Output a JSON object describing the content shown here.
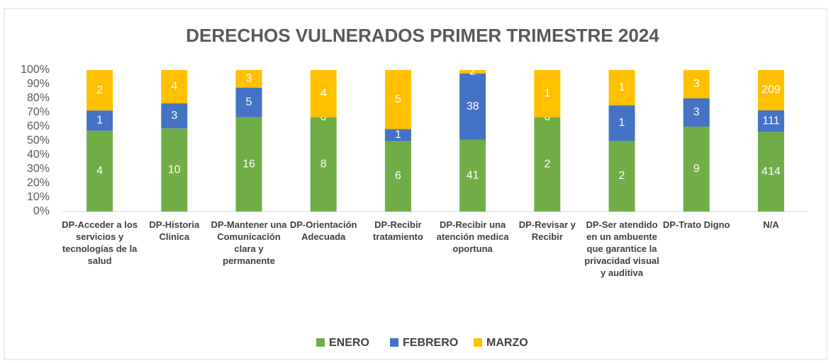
{
  "chart_data": {
    "type": "stacked_percent_bar",
    "title": "DERECHOS VULNERADOS PRIMER TRIMESTRE 2024",
    "categories": [
      "DP-Acceder a los servicios y tecnologías de la salud",
      "DP-Historia Clinica",
      "DP-Mantener una Comunicación clara y permanente",
      "DP-Orientación Adecuada",
      "DP-Recibir tratamiento",
      "DP-Recibir una atención medica oportuna",
      "DP-Revisar y Recibir",
      "DP-Ser atendido en un ambuente que garantice la privacidad visual y auditiva",
      "DP-Trato Digno",
      "N/A"
    ],
    "series": [
      {
        "name": "ENERO",
        "color": "#70ad47",
        "values": [
          4,
          10,
          16,
          8,
          6,
          41,
          2,
          2,
          9,
          414
        ]
      },
      {
        "name": "FEBRERO",
        "color": "#4472c4",
        "values": [
          1,
          3,
          5,
          0,
          1,
          38,
          0,
          1,
          3,
          111
        ]
      },
      {
        "name": "MARZO",
        "color": "#ffc000",
        "values": [
          2,
          4,
          3,
          4,
          5,
          2,
          1,
          1,
          3,
          209
        ]
      }
    ],
    "ylim": [
      0,
      100
    ],
    "yticks": [
      {
        "value": 0,
        "label": "0%"
      },
      {
        "value": 10,
        "label": "10%"
      },
      {
        "value": 20,
        "label": "20%"
      },
      {
        "value": 30,
        "label": "30%"
      },
      {
        "value": 40,
        "label": "40%"
      },
      {
        "value": 50,
        "label": "50%"
      },
      {
        "value": 60,
        "label": "60%"
      },
      {
        "value": 70,
        "label": "70%"
      },
      {
        "value": 80,
        "label": "80%"
      },
      {
        "value": 90,
        "label": "90%"
      },
      {
        "value": 100,
        "label": "100%"
      }
    ],
    "legend": "bottom"
  }
}
